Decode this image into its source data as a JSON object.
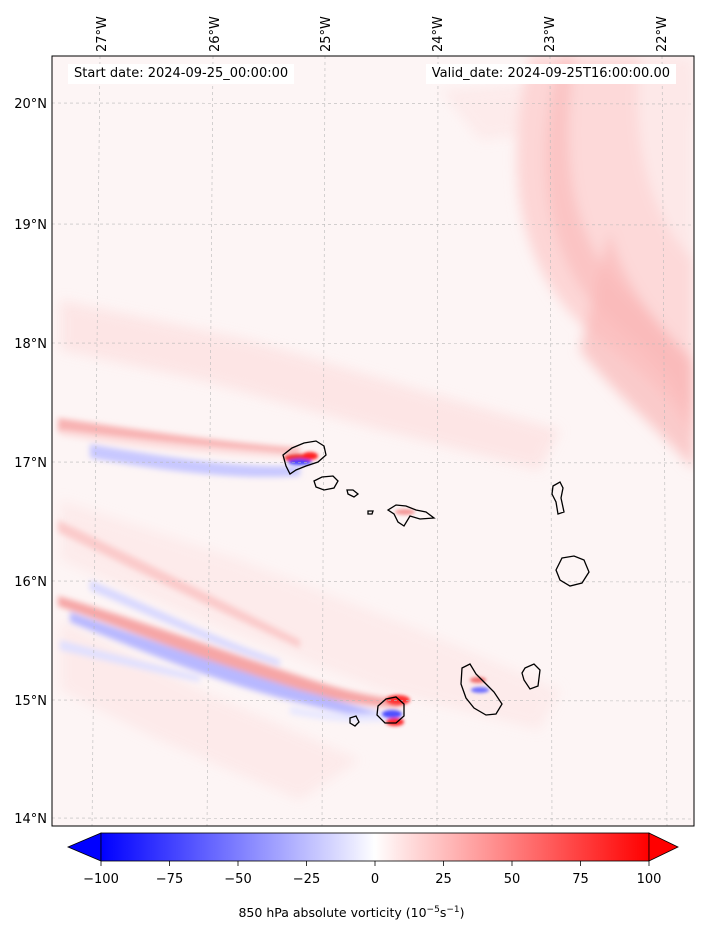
{
  "header": {
    "start_date": "Start date: 2024-09-25_00:00:00",
    "valid_date": "Valid_date: 2024-09-25T16:00:00.00"
  },
  "axes": {
    "lon_labels": [
      "27°W",
      "26°W",
      "25°W",
      "24°W",
      "23°W",
      "22°W"
    ],
    "lat_labels": [
      "20°N",
      "19°N",
      "18°N",
      "17°N",
      "16°N",
      "15°N",
      "14°N"
    ]
  },
  "colorbar": {
    "tick_labels": [
      "−100",
      "−75",
      "−50",
      "−25",
      "0",
      "25",
      "50",
      "75",
      "100"
    ],
    "ticks": [
      -100,
      -75,
      -50,
      -25,
      0,
      25,
      50,
      75,
      100
    ],
    "range": [
      -100,
      100
    ],
    "title_text": "850 hPa absolute vorticity (10",
    "title_exp1": "−5",
    "title_mid": "s",
    "title_exp2": "−1",
    "title_end": ")",
    "colors": {
      "negative": "#0000ff",
      "zero": "#ffffff",
      "positive": "#ff0000"
    }
  },
  "chart_data": {
    "type": "map",
    "title": "850 hPa absolute vorticity",
    "extent_lon": [
      -27.3,
      -21.8
    ],
    "extent_lat": [
      13.95,
      20.45
    ],
    "variable_units": "10^-5 s^-1",
    "colorbar_range": [
      -100,
      100
    ]
  }
}
